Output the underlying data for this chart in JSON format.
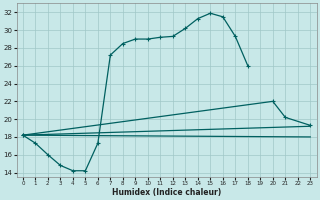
{
  "xlabel": "Humidex (Indice chaleur)",
  "bg_color": "#c8e8e8",
  "grid_color": "#a0c8c8",
  "line_color": "#006060",
  "xlim": [
    -0.5,
    23.5
  ],
  "ylim": [
    13.5,
    33
  ],
  "yticks": [
    14,
    16,
    18,
    20,
    22,
    24,
    26,
    28,
    30,
    32
  ],
  "xticks": [
    0,
    1,
    2,
    3,
    4,
    5,
    6,
    7,
    8,
    9,
    10,
    11,
    12,
    13,
    14,
    15,
    16,
    17,
    18,
    19,
    20,
    21,
    22,
    23
  ],
  "line1_x": [
    0,
    1,
    2,
    3,
    4,
    5,
    6,
    7,
    8,
    9,
    10,
    11,
    12,
    13,
    14,
    15,
    16,
    17,
    18
  ],
  "line1_y": [
    18.2,
    17.3,
    16.0,
    14.8,
    14.2,
    14.2,
    17.3,
    27.2,
    28.5,
    29.0,
    29.0,
    29.2,
    29.3,
    30.2,
    31.3,
    31.9,
    31.5,
    29.3,
    26.0
  ],
  "line2_x": [
    0,
    20,
    21,
    23
  ],
  "line2_y": [
    18.2,
    22.0,
    20.2,
    19.3
  ],
  "line3_x": [
    0,
    23
  ],
  "line3_y": [
    18.2,
    19.2
  ],
  "line4_x": [
    0,
    23
  ],
  "line4_y": [
    18.2,
    18.0
  ],
  "marker_size": 3,
  "lw": 0.9
}
